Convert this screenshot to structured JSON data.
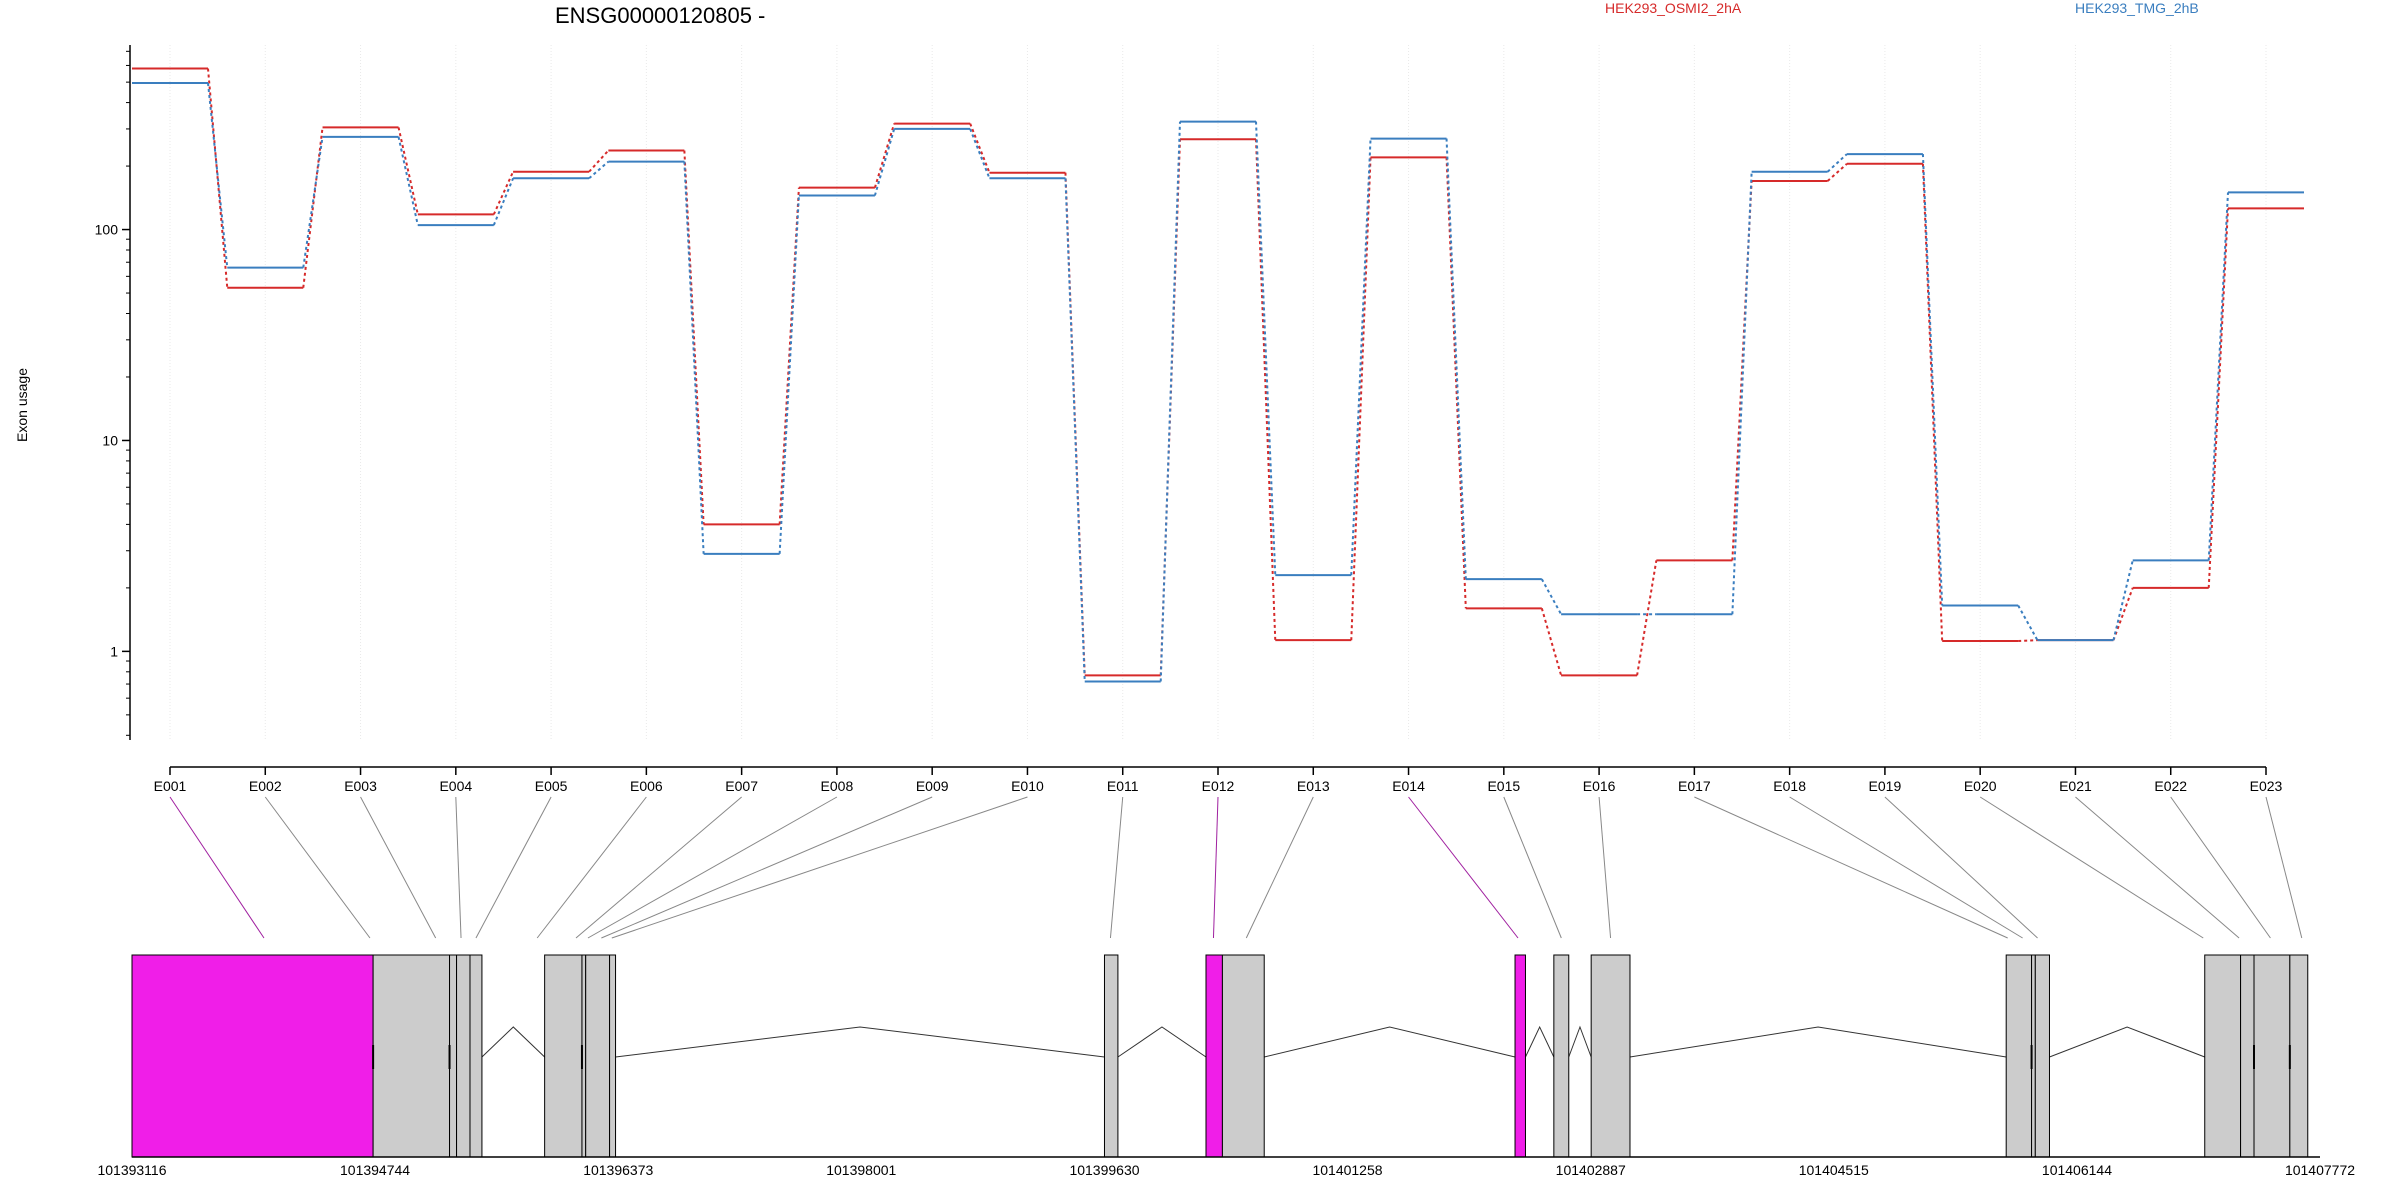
{
  "chart_data": {
    "type": "line",
    "title": "ENSG00000120805 -",
    "ylabel": "Exon usage",
    "yscale": "log",
    "ylim": [
      0.38,
      750
    ],
    "y_ticks": [
      1,
      10,
      100
    ],
    "y_tick_labels": [
      "1",
      "10",
      "100"
    ],
    "categories": [
      "E001",
      "E002",
      "E003",
      "E004",
      "E005",
      "E006",
      "E007",
      "E008",
      "E009",
      "E010",
      "E011",
      "E012",
      "E013",
      "E014",
      "E015",
      "E016",
      "E017",
      "E018",
      "E019",
      "E020",
      "E021",
      "E022",
      "E023"
    ],
    "series": [
      {
        "name": "HEK293_OSMI2_2hA",
        "color": "#d62a2a",
        "values": [
          580,
          53,
          305,
          118,
          188,
          237,
          4.0,
          158,
          318,
          186,
          0.77,
          268,
          1.13,
          220,
          1.6,
          0.77,
          2.7,
          170,
          205,
          1.12,
          1.13,
          2.0,
          126
        ]
      },
      {
        "name": "HEK293_TMG_2hB",
        "color": "#3a7ebf",
        "values": [
          495,
          66,
          275,
          105,
          175,
          210,
          2.9,
          145,
          300,
          175,
          0.72,
          325,
          2.3,
          270,
          2.2,
          1.5,
          1.5,
          188,
          228,
          1.65,
          1.13,
          2.7,
          150
        ]
      }
    ],
    "gene_model": {
      "coord_ticks": [
        "101393116",
        "101394744",
        "101396373",
        "101398001",
        "101399630",
        "101401258",
        "101402887",
        "101404515",
        "101406144",
        "101407772"
      ],
      "colors": {
        "exon": "#cccccc",
        "highlight": "#f01ee8",
        "outline": "#000000",
        "connector": "#888888",
        "connector_highlight": "#a020a0"
      },
      "highlighted_exons": [
        "E001",
        "E012",
        "E014"
      ]
    },
    "legend_placement": "top-right",
    "grid": true
  }
}
